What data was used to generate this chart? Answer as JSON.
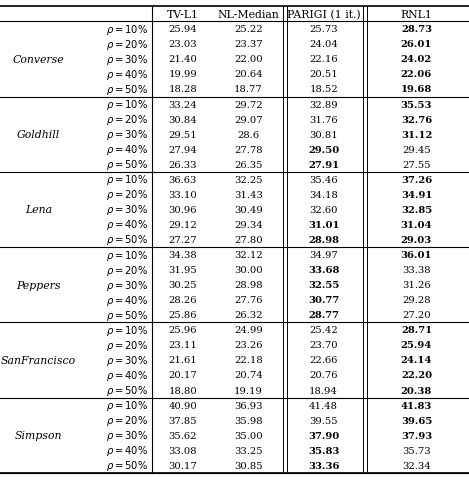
{
  "col_headers": [
    "TV-L1",
    "NL-Median",
    "PARIGI (1 it.)",
    "RNL1"
  ],
  "row_groups": [
    {
      "name": "Converse",
      "rows": [
        {
          "rho": "\\rho = 10\\%",
          "vals": [
            "25.94",
            "25.22",
            "25.73",
            "28.73"
          ],
          "bold": [
            false,
            false,
            false,
            true
          ]
        },
        {
          "rho": "\\rho = 20\\%",
          "vals": [
            "23.03",
            "23.37",
            "24.04",
            "26.01"
          ],
          "bold": [
            false,
            false,
            false,
            true
          ]
        },
        {
          "rho": "\\rho = 30\\%",
          "vals": [
            "21.40",
            "22.00",
            "22.16",
            "24.02"
          ],
          "bold": [
            false,
            false,
            false,
            true
          ]
        },
        {
          "rho": "\\rho = 40\\%",
          "vals": [
            "19.99",
            "20.64",
            "20.51",
            "22.06"
          ],
          "bold": [
            false,
            false,
            false,
            true
          ]
        },
        {
          "rho": "\\rho = 50\\%",
          "vals": [
            "18.28",
            "18.77",
            "18.52",
            "19.68"
          ],
          "bold": [
            false,
            false,
            false,
            true
          ]
        }
      ]
    },
    {
      "name": "Goldhill",
      "rows": [
        {
          "rho": "\\rho = 10\\%",
          "vals": [
            "33.24",
            "29.72",
            "32.89",
            "35.53"
          ],
          "bold": [
            false,
            false,
            false,
            true
          ]
        },
        {
          "rho": "\\rho = 20\\%",
          "vals": [
            "30.84",
            "29.07",
            "31.76",
            "32.76"
          ],
          "bold": [
            false,
            false,
            false,
            true
          ]
        },
        {
          "rho": "\\rho = 30\\%",
          "vals": [
            "29.51",
            "28.6",
            "30.81",
            "31.12"
          ],
          "bold": [
            false,
            false,
            false,
            true
          ]
        },
        {
          "rho": "\\rho = 40\\%",
          "vals": [
            "27.94",
            "27.78",
            "29.50",
            "29.45"
          ],
          "bold": [
            false,
            false,
            true,
            false
          ]
        },
        {
          "rho": "\\rho = 50\\%",
          "vals": [
            "26.33",
            "26.35",
            "27.91",
            "27.55"
          ],
          "bold": [
            false,
            false,
            true,
            false
          ]
        }
      ]
    },
    {
      "name": "Lena",
      "rows": [
        {
          "rho": "\\rho = 10\\%",
          "vals": [
            "36.63",
            "32.25",
            "35.46",
            "37.26"
          ],
          "bold": [
            false,
            false,
            false,
            true
          ]
        },
        {
          "rho": "\\rho = 20\\%",
          "vals": [
            "33.10",
            "31.43",
            "34.18",
            "34.91"
          ],
          "bold": [
            false,
            false,
            false,
            true
          ]
        },
        {
          "rho": "\\rho = 30\\%",
          "vals": [
            "30.96",
            "30.49",
            "32.60",
            "32.85"
          ],
          "bold": [
            false,
            false,
            false,
            true
          ]
        },
        {
          "rho": "\\rho = 40\\%",
          "vals": [
            "29.12",
            "29.34",
            "31.01",
            "31.04"
          ],
          "bold": [
            false,
            false,
            true,
            true
          ]
        },
        {
          "rho": "\\rho = 50\\%",
          "vals": [
            "27.27",
            "27.80",
            "28.98",
            "29.03"
          ],
          "bold": [
            false,
            false,
            true,
            true
          ]
        }
      ]
    },
    {
      "name": "Peppers",
      "rows": [
        {
          "rho": "\\rho = 10\\%",
          "vals": [
            "34.38",
            "32.12",
            "34.97",
            "36.01"
          ],
          "bold": [
            false,
            false,
            false,
            true
          ]
        },
        {
          "rho": "\\rho = 20\\%",
          "vals": [
            "31.95",
            "30.00",
            "33.68",
            "33.38"
          ],
          "bold": [
            false,
            false,
            true,
            false
          ]
        },
        {
          "rho": "\\rho = 30\\%",
          "vals": [
            "30.25",
            "28.98",
            "32.55",
            "31.26"
          ],
          "bold": [
            false,
            false,
            true,
            false
          ]
        },
        {
          "rho": "\\rho = 40\\%",
          "vals": [
            "28.26",
            "27.76",
            "30.77",
            "29.28"
          ],
          "bold": [
            false,
            false,
            true,
            false
          ]
        },
        {
          "rho": "\\rho = 50\\%",
          "vals": [
            "25.86",
            "26.32",
            "28.77",
            "27.20"
          ],
          "bold": [
            false,
            false,
            true,
            false
          ]
        }
      ]
    },
    {
      "name": "SanFrancisco",
      "rows": [
        {
          "rho": "\\rho = 10\\%",
          "vals": [
            "25.96",
            "24.99",
            "25.42",
            "28.71"
          ],
          "bold": [
            false,
            false,
            false,
            true
          ]
        },
        {
          "rho": "\\rho = 20\\%",
          "vals": [
            "23.11",
            "23.26",
            "23.70",
            "25.94"
          ],
          "bold": [
            false,
            false,
            false,
            true
          ]
        },
        {
          "rho": "\\rho = 30\\%",
          "vals": [
            "21.61",
            "22.18",
            "22.66",
            "24.14"
          ],
          "bold": [
            false,
            false,
            false,
            true
          ]
        },
        {
          "rho": "\\rho = 40\\%",
          "vals": [
            "20.17",
            "20.74",
            "20.76",
            "22.20"
          ],
          "bold": [
            false,
            false,
            false,
            true
          ]
        },
        {
          "rho": "\\rho = 50\\%",
          "vals": [
            "18.80",
            "19.19",
            "18.94",
            "20.38"
          ],
          "bold": [
            false,
            false,
            false,
            true
          ]
        }
      ]
    },
    {
      "name": "Simpson",
      "rows": [
        {
          "rho": "\\rho = 10\\%",
          "vals": [
            "40.90",
            "36.93",
            "41.48",
            "41.83"
          ],
          "bold": [
            false,
            false,
            false,
            true
          ]
        },
        {
          "rho": "\\rho = 20\\%",
          "vals": [
            "37.85",
            "35.98",
            "39.55",
            "39.65"
          ],
          "bold": [
            false,
            false,
            false,
            true
          ]
        },
        {
          "rho": "\\rho = 30\\%",
          "vals": [
            "35.62",
            "35.00",
            "37.90",
            "37.93"
          ],
          "bold": [
            false,
            false,
            true,
            true
          ]
        },
        {
          "rho": "\\rho = 40\\%",
          "vals": [
            "33.08",
            "33.25",
            "35.83",
            "35.73"
          ],
          "bold": [
            false,
            false,
            true,
            false
          ]
        },
        {
          "rho": "\\rho = 50\\%",
          "vals": [
            "30.17",
            "30.85",
            "33.36",
            "32.34"
          ],
          "bold": [
            false,
            false,
            true,
            false
          ]
        }
      ]
    }
  ],
  "header_fs": 7.8,
  "cell_fs": 7.2,
  "group_fs": 7.8,
  "rho_fs": 7.2,
  "figsize": [
    4.69,
    4.81
  ],
  "dpi": 100
}
